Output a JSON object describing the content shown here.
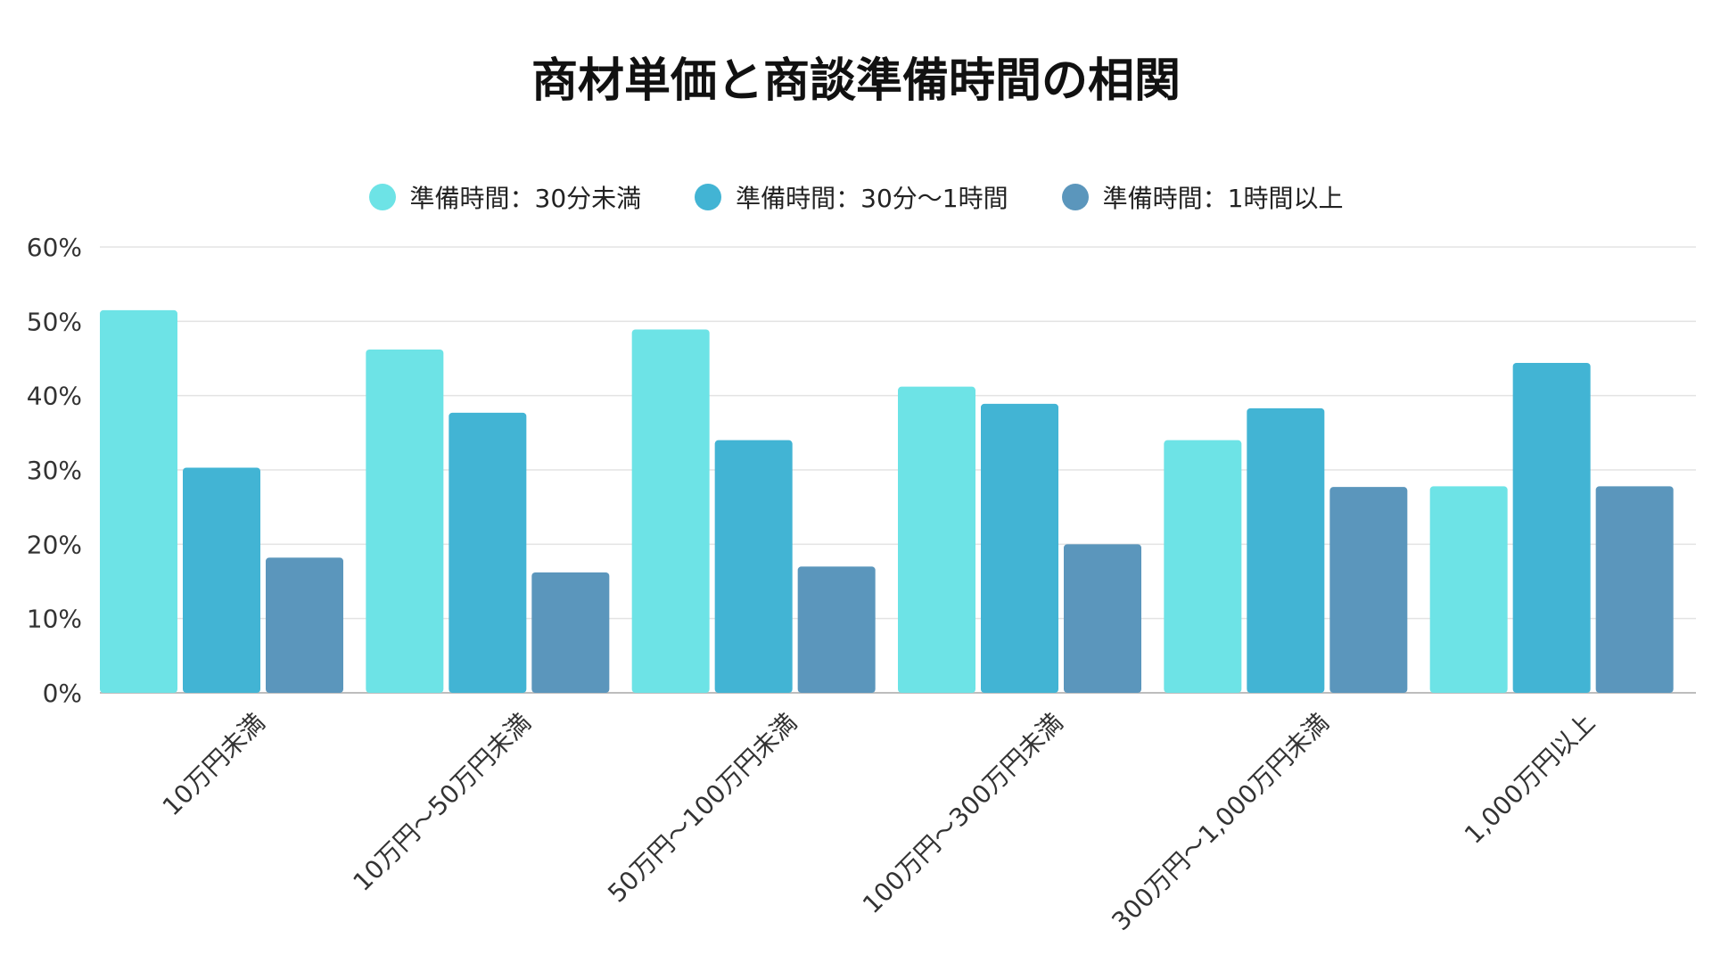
{
  "chart_data": {
    "type": "bar",
    "title": "商材単価と商談準備時間の相関",
    "categories": [
      "10万円未満",
      "10万円〜50万円未満",
      "50万円〜100万円未満",
      "100万円〜300万円未満",
      "300万円〜1,000万円未満",
      "1,000万円以上"
    ],
    "series": [
      {
        "name": "準備時間：30分未満",
        "color": "#6de3e6",
        "values": [
          51.5,
          46.2,
          48.9,
          41.2,
          34.0,
          27.8
        ]
      },
      {
        "name": "準備時間：30分〜1時間",
        "color": "#42b4d4",
        "values": [
          30.3,
          37.7,
          34.0,
          38.9,
          38.3,
          44.4
        ]
      },
      {
        "name": "準備時間：1時間以上",
        "color": "#5b96bc",
        "values": [
          18.2,
          16.2,
          17.0,
          20.0,
          27.7,
          27.8
        ]
      }
    ],
    "ylim": [
      0,
      60
    ],
    "yticks": [
      0,
      10,
      20,
      30,
      40,
      50,
      60
    ],
    "ytick_labels": [
      "0%",
      "10%",
      "20%",
      "30%",
      "40%",
      "50%",
      "60%"
    ],
    "grid": true,
    "legend_position": "top-center",
    "xlabel": "",
    "ylabel": ""
  }
}
